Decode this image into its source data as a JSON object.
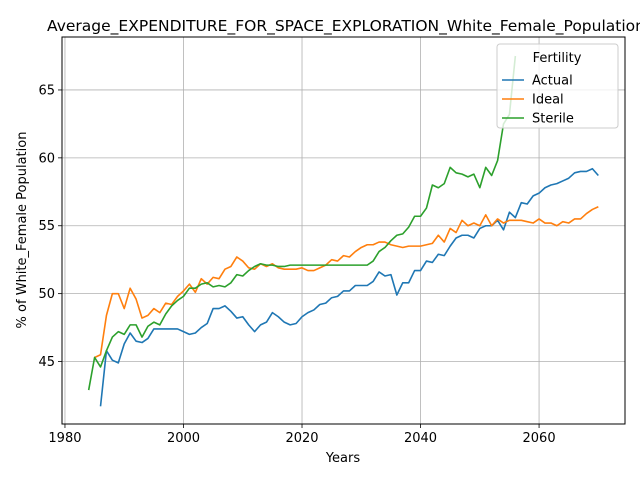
{
  "chart_data": {
    "type": "line",
    "title": "Average_EXPENDITURE_FOR_SPACE_EXPLORATION_White_Female_Population",
    "xlabel": "Years",
    "ylabel": "% of White_Female Population",
    "xlim": [
      1979.5,
      2074.5
    ],
    "ylim": [
      40.4,
      68.9
    ],
    "xticks": [
      1980,
      2000,
      2020,
      2040,
      2060
    ],
    "yticks": [
      45,
      50,
      55,
      60,
      65
    ],
    "grid": true,
    "legend": {
      "title": "Fertility",
      "position": "top-right"
    },
    "series": [
      {
        "name": "Actual",
        "color": "#1f77b4",
        "x": [
          1986,
          1987,
          1988,
          1989,
          1990,
          1991,
          1992,
          1993,
          1994,
          1995,
          1996,
          1997,
          1998,
          1999,
          2000,
          2001,
          2002,
          2003,
          2004,
          2005,
          2006,
          2007,
          2008,
          2009,
          2010,
          2011,
          2012,
          2013,
          2014,
          2015,
          2016,
          2017,
          2018,
          2019,
          2020,
          2021,
          2022,
          2023,
          2024,
          2025,
          2026,
          2027,
          2028,
          2029,
          2030,
          2031,
          2032,
          2033,
          2034,
          2035,
          2036,
          2037,
          2038,
          2039,
          2040,
          2041,
          2042,
          2043,
          2044,
          2045,
          2046,
          2047,
          2048,
          2049,
          2050,
          2051,
          2052,
          2053,
          2054,
          2055,
          2056,
          2057,
          2058,
          2059,
          2060,
          2061,
          2062,
          2063,
          2064,
          2065,
          2066,
          2067,
          2068,
          2069,
          2070
        ],
        "y": [
          41.7,
          45.8,
          45.1,
          44.9,
          46.3,
          47.1,
          46.5,
          46.4,
          46.7,
          47.4,
          47.4,
          47.4,
          47.4,
          47.4,
          47.2,
          47.0,
          47.1,
          47.5,
          47.8,
          48.9,
          48.9,
          49.1,
          48.7,
          48.2,
          48.3,
          47.7,
          47.2,
          47.7,
          47.9,
          48.6,
          48.3,
          47.9,
          47.7,
          47.8,
          48.3,
          48.6,
          48.8,
          49.2,
          49.3,
          49.7,
          49.8,
          50.2,
          50.2,
          50.6,
          50.6,
          50.6,
          50.9,
          51.6,
          51.3,
          51.4,
          49.9,
          50.8,
          50.8,
          51.7,
          51.7,
          52.4,
          52.3,
          52.9,
          52.8,
          53.5,
          54.1,
          54.3,
          54.3,
          54.1,
          54.8,
          55.0,
          55.0,
          55.4,
          54.7,
          56.0,
          55.6,
          56.7,
          56.6,
          57.2,
          57.4,
          57.8,
          58.0,
          58.1,
          58.3,
          58.5,
          58.9,
          59.0,
          59.0,
          59.2,
          58.7
        ]
      },
      {
        "name": "Ideal",
        "color": "#ff7f0e",
        "x": [
          1985,
          1986,
          1987,
          1988,
          1989,
          1990,
          1991,
          1992,
          1993,
          1994,
          1995,
          1996,
          1997,
          1998,
          1999,
          2000,
          2001,
          2002,
          2003,
          2004,
          2005,
          2006,
          2007,
          2008,
          2009,
          2010,
          2011,
          2012,
          2013,
          2014,
          2015,
          2016,
          2017,
          2018,
          2019,
          2020,
          2021,
          2022,
          2023,
          2024,
          2025,
          2026,
          2027,
          2028,
          2029,
          2030,
          2031,
          2032,
          2033,
          2034,
          2035,
          2036,
          2037,
          2038,
          2039,
          2040,
          2041,
          2042,
          2043,
          2044,
          2045,
          2046,
          2047,
          2048,
          2049,
          2050,
          2051,
          2052,
          2053,
          2054,
          2055,
          2056,
          2057,
          2058,
          2059,
          2060,
          2061,
          2062,
          2063,
          2064,
          2065,
          2066,
          2067,
          2068,
          2069,
          2070
        ],
        "y": [
          45.3,
          45.5,
          48.4,
          50.0,
          50.0,
          48.9,
          50.4,
          49.6,
          48.2,
          48.4,
          48.9,
          48.6,
          49.3,
          49.2,
          49.8,
          50.2,
          50.7,
          50.1,
          51.1,
          50.7,
          51.2,
          51.1,
          51.8,
          52.0,
          52.7,
          52.4,
          51.9,
          51.8,
          52.2,
          52.0,
          52.2,
          51.9,
          51.8,
          51.8,
          51.8,
          51.9,
          51.7,
          51.7,
          51.9,
          52.1,
          52.5,
          52.4,
          52.8,
          52.7,
          53.1,
          53.4,
          53.6,
          53.6,
          53.8,
          53.8,
          53.6,
          53.5,
          53.4,
          53.5,
          53.5,
          53.5,
          53.6,
          53.7,
          54.3,
          53.8,
          54.8,
          54.5,
          55.4,
          55.0,
          55.2,
          55.0,
          55.8,
          55.0,
          55.5,
          55.2,
          55.4,
          55.4,
          55.4,
          55.3,
          55.2,
          55.5,
          55.2,
          55.2,
          55.0,
          55.3,
          55.2,
          55.5,
          55.5,
          55.9,
          56.2,
          56.4
        ]
      },
      {
        "name": "Sterile",
        "color": "#2ca02c",
        "x": [
          1984,
          1985,
          1986,
          1987,
          1988,
          1989,
          1990,
          1991,
          1992,
          1993,
          1994,
          1995,
          1996,
          1997,
          1998,
          1999,
          2000,
          2001,
          2002,
          2003,
          2004,
          2005,
          2006,
          2007,
          2008,
          2009,
          2010,
          2011,
          2012,
          2013,
          2014,
          2015,
          2016,
          2017,
          2018,
          2019,
          2020,
          2021,
          2022,
          2023,
          2024,
          2025,
          2026,
          2027,
          2028,
          2029,
          2030,
          2031,
          2032,
          2033,
          2034,
          2035,
          2036,
          2037,
          2038,
          2039,
          2040,
          2041,
          2042,
          2043,
          2044,
          2045,
          2046,
          2047,
          2048,
          2049,
          2050,
          2051,
          2052,
          2053,
          2054,
          2055,
          2056
        ],
        "y": [
          42.9,
          45.3,
          44.6,
          45.8,
          46.8,
          47.2,
          47.0,
          47.7,
          47.7,
          46.8,
          47.6,
          47.9,
          47.7,
          48.5,
          49.1,
          49.5,
          49.8,
          50.4,
          50.4,
          50.7,
          50.8,
          50.5,
          50.6,
          50.5,
          50.8,
          51.4,
          51.3,
          51.7,
          52.0,
          52.2,
          52.1,
          52.1,
          52.0,
          52.0,
          52.1,
          52.1,
          52.1,
          52.1,
          52.1,
          52.1,
          52.1,
          52.1,
          52.1,
          52.1,
          52.1,
          52.1,
          52.1,
          52.1,
          52.4,
          53.1,
          53.4,
          53.9,
          54.3,
          54.4,
          54.9,
          55.7,
          55.7,
          56.3,
          58.0,
          57.8,
          58.1,
          59.3,
          58.9,
          58.8,
          58.6,
          58.8,
          57.8,
          59.3,
          58.7,
          59.8,
          62.5,
          63.2,
          67.5
        ]
      }
    ]
  }
}
